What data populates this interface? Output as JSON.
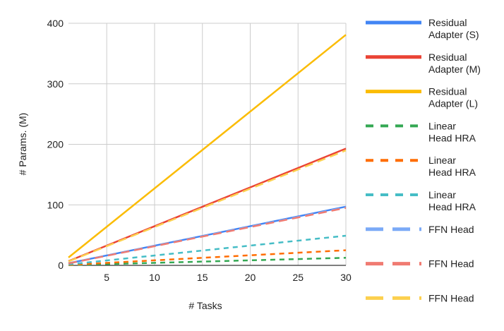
{
  "chart_data": {
    "type": "line",
    "title": "",
    "xlabel": "# Tasks",
    "ylabel": "# Params. (M)",
    "xlim": [
      1,
      30
    ],
    "ylim": [
      0,
      400
    ],
    "x_ticks": [
      5,
      10,
      15,
      20,
      25,
      30
    ],
    "y_ticks": [
      0,
      100,
      200,
      300,
      400
    ],
    "grid": true,
    "legend_position": "right",
    "x": [
      1,
      30
    ],
    "series": [
      {
        "name": "Residual Adapter (S)",
        "legend_lines": [
          "Residual",
          "Adapter (S)"
        ],
        "color": "#4285F4",
        "style": "solid",
        "values": [
          3.5,
          97
        ]
      },
      {
        "name": "Residual Adapter (M)",
        "legend_lines": [
          "Residual",
          "Adapter (M)"
        ],
        "color": "#EA4335",
        "style": "solid",
        "values": [
          7,
          193
        ]
      },
      {
        "name": "Residual Adapter (L)",
        "legend_lines": [
          "Residual",
          "Adapter (L)"
        ],
        "color": "#FBBC04",
        "style": "solid",
        "values": [
          13,
          381
        ]
      },
      {
        "name": "Linear Head HRA",
        "legend_lines": [
          "Linear",
          "Head HRA"
        ],
        "color": "#34A853",
        "style": "dashed-short",
        "values": [
          0.4,
          12.5
        ]
      },
      {
        "name": "Linear Head HRA",
        "legend_lines": [
          "Linear",
          "Head HRA"
        ],
        "color": "#FF6D01",
        "style": "dashed-short",
        "values": [
          0.8,
          25
        ]
      },
      {
        "name": "Linear Head HRA",
        "legend_lines": [
          "Linear",
          "Head HRA"
        ],
        "color": "#46BDC6",
        "style": "dashed-short",
        "values": [
          1.6,
          49
        ]
      },
      {
        "name": "FFN Head",
        "legend_lines": [
          "FFN Head"
        ],
        "color": "#7BAAF7",
        "style": "dashed-long",
        "values": [
          3.2,
          96
        ]
      },
      {
        "name": "FFN Head",
        "legend_lines": [
          "FFN Head"
        ],
        "color": "#F07B72",
        "style": "dashed-long",
        "values": [
          3.2,
          95
        ]
      },
      {
        "name": "FFN Head",
        "legend_lines": [
          "FFN Head"
        ],
        "color": "#FCD04F",
        "style": "dashed-long",
        "values": [
          6.4,
          190
        ]
      }
    ]
  }
}
